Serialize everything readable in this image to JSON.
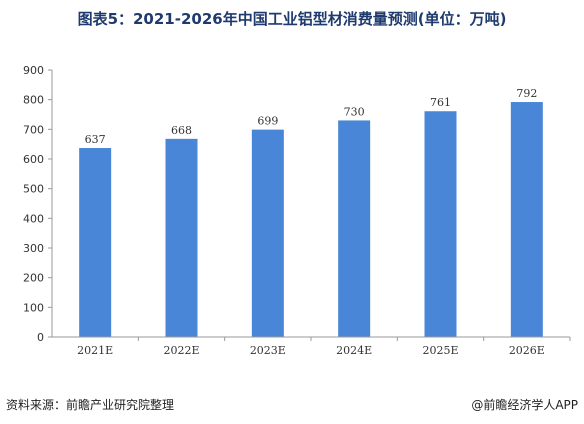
{
  "title": "图表5：2021-2026年中国工业铝型材消费量预测(单位：万吨)",
  "source_left": "资料来源：前瞻产业研究院整理",
  "source_right": "@前瞻经济学人APP",
  "colors": {
    "bar": "#4a86d8",
    "axis": "#999999",
    "title": "#1f3a6d"
  },
  "chart_data": {
    "type": "bar",
    "categories": [
      "2021E",
      "2022E",
      "2023E",
      "2024E",
      "2025E",
      "2026E"
    ],
    "values": [
      637,
      668,
      699,
      730,
      761,
      792
    ],
    "title": "图表5：2021-2026年中国工业铝型材消费量预测(单位：万吨)",
    "xlabel": "",
    "ylabel": "",
    "ylim": [
      0,
      900
    ],
    "yticks": [
      0,
      100,
      200,
      300,
      400,
      500,
      600,
      700,
      800,
      900
    ],
    "grid": false,
    "legend": "none"
  }
}
